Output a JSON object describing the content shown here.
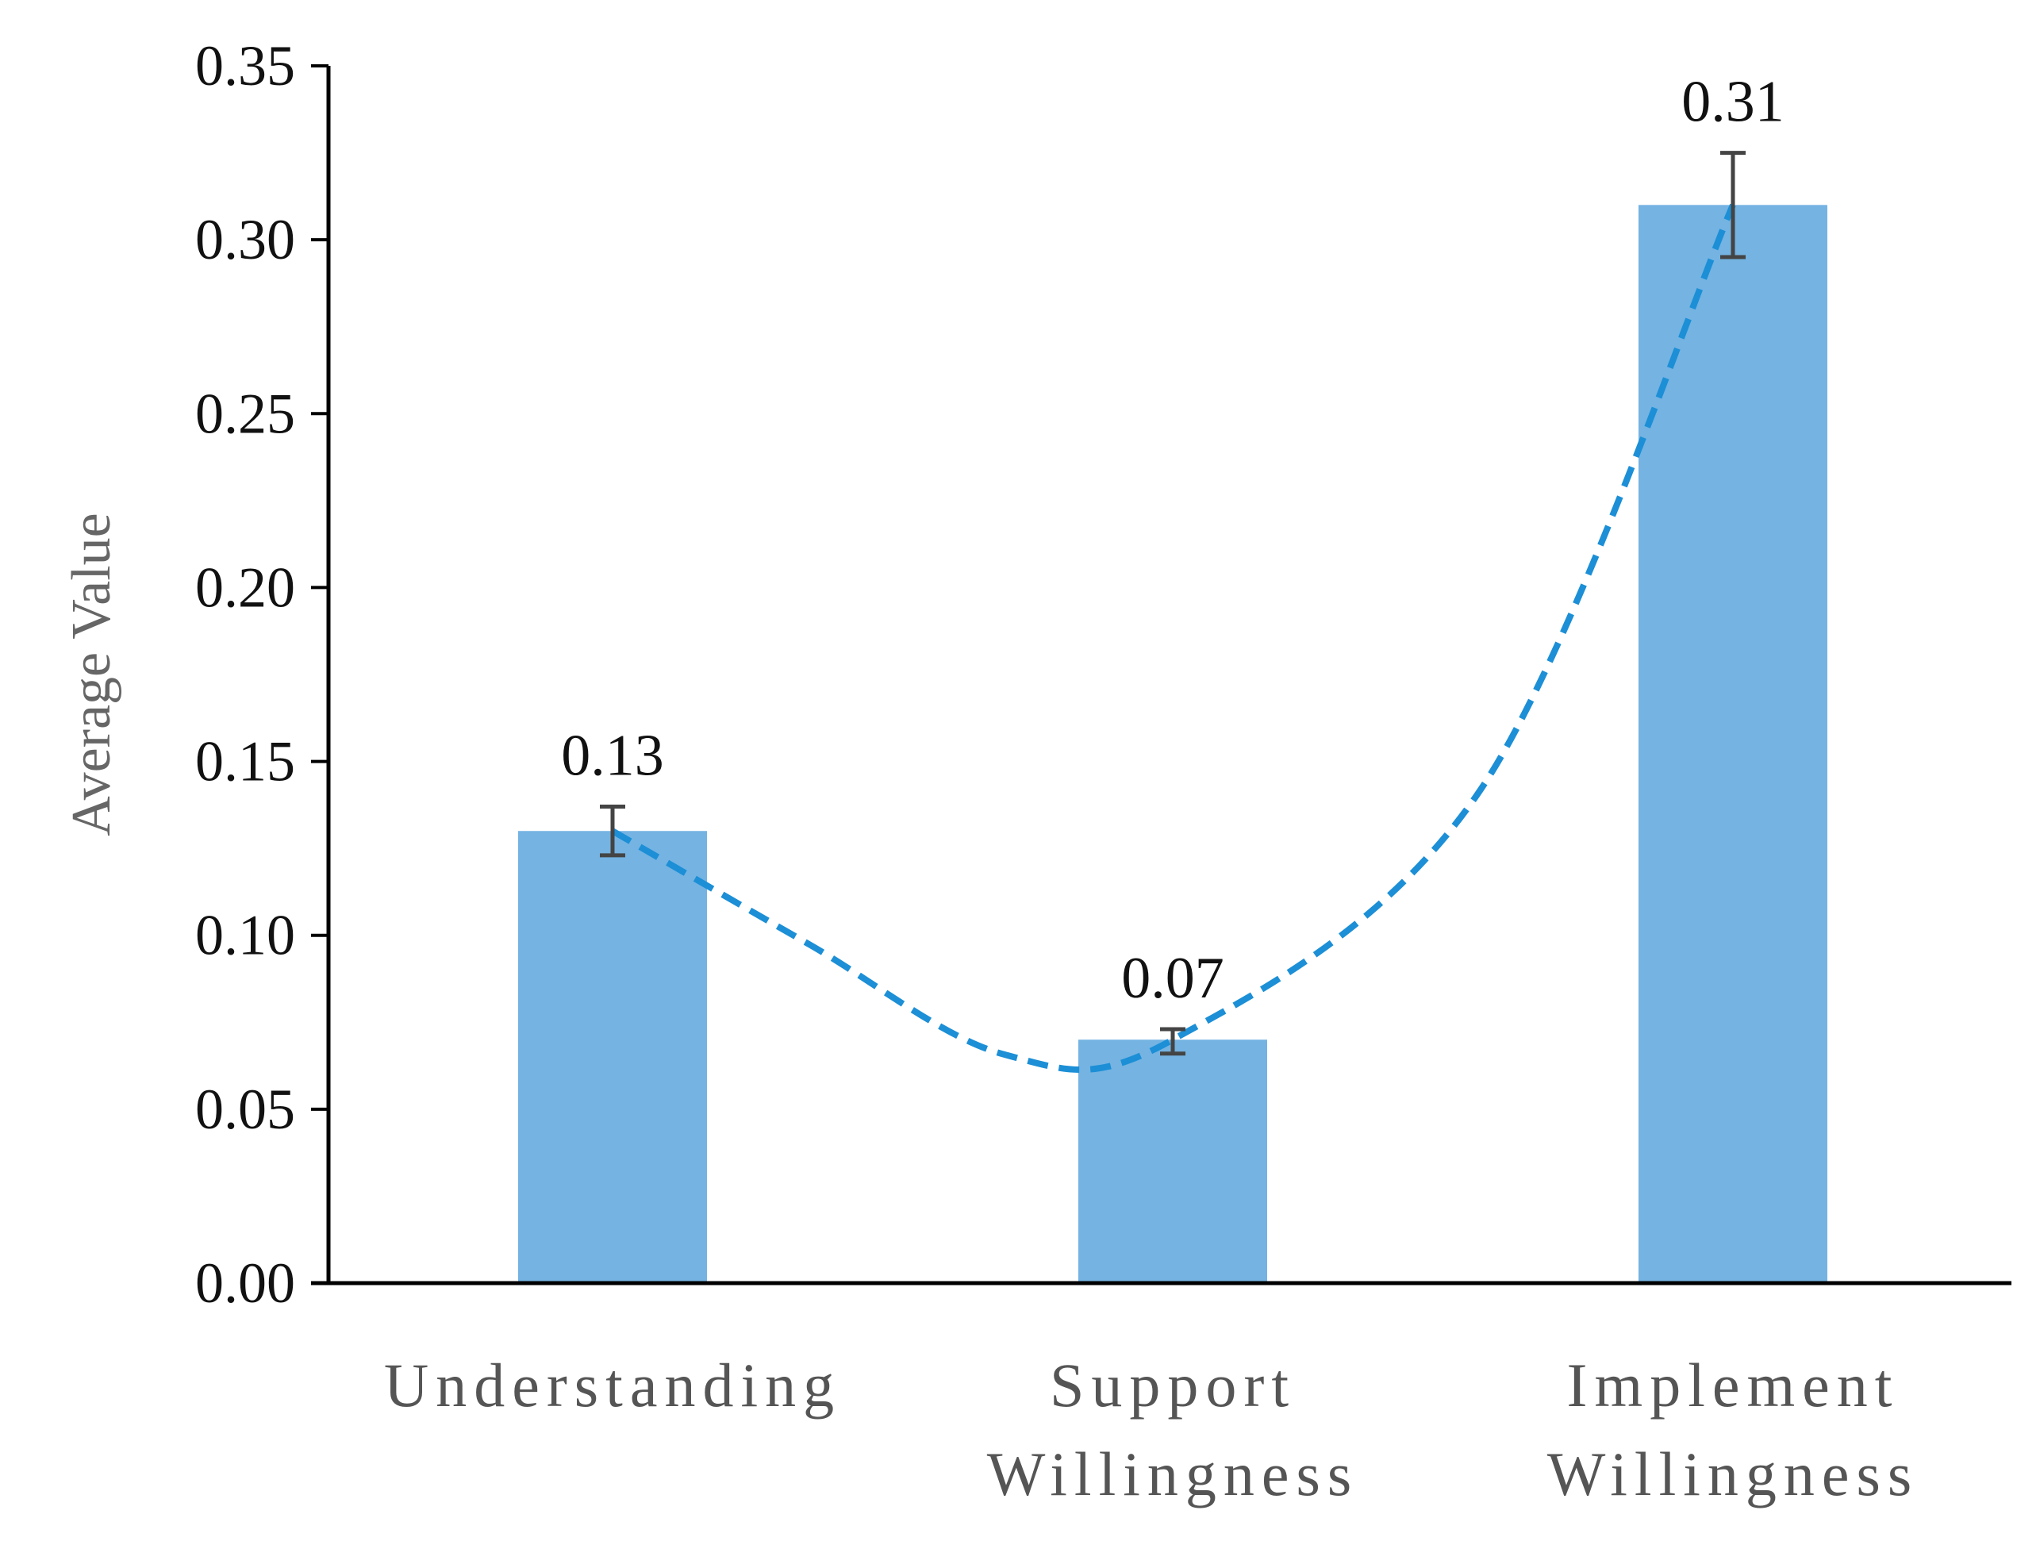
{
  "chart_data": {
    "type": "bar",
    "title": "",
    "xlabel": "",
    "ylabel": "Average Value",
    "ylim": [
      0,
      0.35
    ],
    "yticks": [
      "0.00",
      "0.05",
      "0.10",
      "0.15",
      "0.20",
      "0.25",
      "0.30",
      "0.35"
    ],
    "categories": [
      [
        "Understanding"
      ],
      [
        "Support",
        "Willingness"
      ],
      [
        "Implement",
        "Willingness"
      ]
    ],
    "values": [
      0.13,
      0.07,
      0.31
    ],
    "data_labels": [
      "0.13",
      "0.07",
      "0.31"
    ],
    "error_bars": [
      {
        "low": 0.123,
        "high": 0.137
      },
      {
        "low": 0.066,
        "high": 0.073
      },
      {
        "low": 0.295,
        "high": 0.325
      }
    ],
    "trendline": {
      "style": "dashed",
      "points": [
        {
          "x": 0,
          "y": 0.13
        },
        {
          "x": 0.35,
          "y": 0.0975
        },
        {
          "x": 0.7,
          "y": 0.0657
        },
        {
          "x": 1.0,
          "y": 0.07
        },
        {
          "x": 1.55,
          "y": 0.142
        },
        {
          "x": 2.0,
          "y": 0.31
        }
      ]
    },
    "grid": false,
    "legend": "none",
    "colors": {
      "bar": "#74b3e2",
      "trendline": "#1c8fd6",
      "error_bar": "#444444",
      "axis": "#000000"
    }
  }
}
